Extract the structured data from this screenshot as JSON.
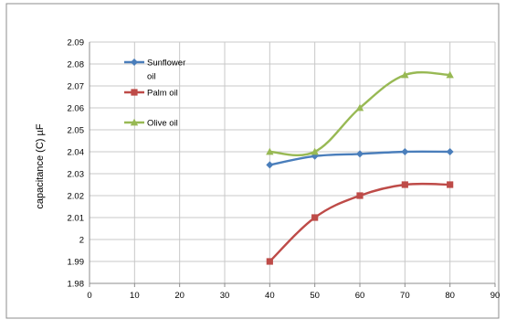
{
  "chart_data": {
    "type": "line",
    "title": "",
    "xlabel": "",
    "ylabel": "capacitance (C) µF",
    "xlim": [
      0,
      90
    ],
    "ylim": [
      1.98,
      2.09
    ],
    "x_ticks": [
      0,
      10,
      20,
      30,
      40,
      50,
      60,
      70,
      80,
      90
    ],
    "y_ticks": [
      1.98,
      1.99,
      2,
      2.01,
      2.02,
      2.03,
      2.04,
      2.05,
      2.06,
      2.07,
      2.08,
      2.09
    ],
    "y_tick_labels": [
      "1.98",
      "1.99",
      "2",
      "2.01",
      "2.02",
      "2.03",
      "2.04",
      "2.05",
      "2.06",
      "2.07",
      "2.08",
      "2.09"
    ],
    "grid": true,
    "legend_position": "top-left",
    "x": [
      40,
      50,
      60,
      70,
      80
    ],
    "series": [
      {
        "name": "Sunflower oil",
        "legend_lines": [
          "Sunflower",
          "oil"
        ],
        "color": "#4a7ebb",
        "marker": "diamond",
        "values": [
          2.034,
          2.038,
          2.039,
          2.04,
          2.04
        ]
      },
      {
        "name": "Palm oil",
        "legend_lines": [
          "Palm oil"
        ],
        "color": "#be4b48",
        "marker": "square",
        "values": [
          1.99,
          2.01,
          2.02,
          2.025,
          2.025
        ]
      },
      {
        "name": "Olive oil",
        "legend_lines": [
          "Olive oil"
        ],
        "color": "#98b954",
        "marker": "triangle",
        "values": [
          2.04,
          2.04,
          2.06,
          2.075,
          2.075
        ]
      }
    ]
  }
}
